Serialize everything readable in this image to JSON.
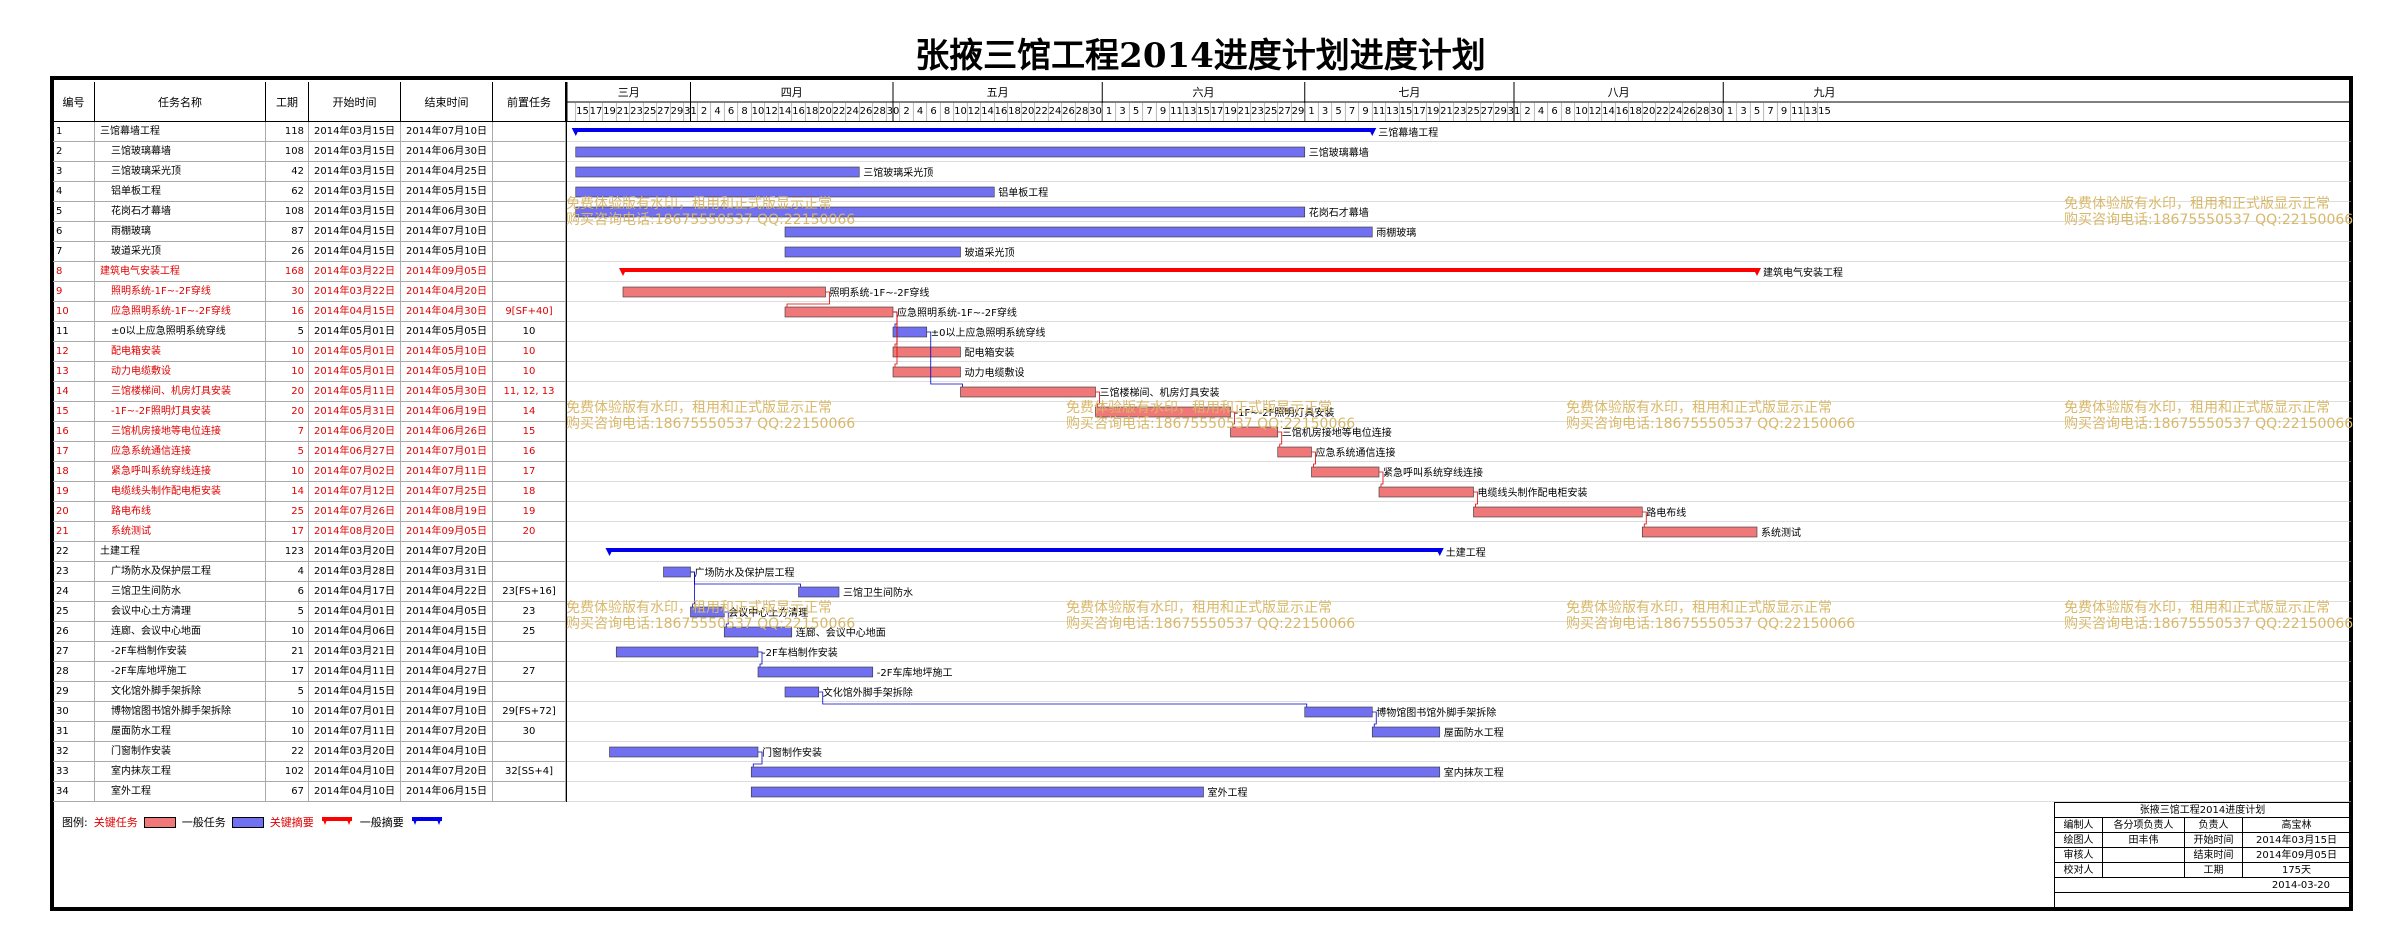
{
  "title": "张掖三馆工程2014进度计划进度计划",
  "table": {
    "headers": {
      "id": "编号",
      "name": "任务名称",
      "duration": "工期",
      "start": "开始时间",
      "end": "结束时间",
      "pred": "前置任务"
    },
    "rows": [
      {
        "id": "1",
        "name": "三馆幕墙工程",
        "dur": "118",
        "start": "2014年03月15日",
        "end": "2014年07月10日",
        "pred": "",
        "level": 1,
        "critical": false,
        "kind": "summary",
        "label": "三馆幕墙工程"
      },
      {
        "id": "2",
        "name": "三馆玻璃幕墙",
        "dur": "108",
        "start": "2014年03月15日",
        "end": "2014年06月30日",
        "pred": "",
        "level": 2,
        "critical": false,
        "kind": "task",
        "label": "三馆玻璃幕墙"
      },
      {
        "id": "3",
        "name": "三馆玻璃采光顶",
        "dur": "42",
        "start": "2014年03月15日",
        "end": "2014年04月25日",
        "pred": "",
        "level": 2,
        "critical": false,
        "kind": "task",
        "label": "三馆玻璃采光顶"
      },
      {
        "id": "4",
        "name": "铝单板工程",
        "dur": "62",
        "start": "2014年03月15日",
        "end": "2014年05月15日",
        "pred": "",
        "level": 2,
        "critical": false,
        "kind": "task",
        "label": "铝单板工程"
      },
      {
        "id": "5",
        "name": "花岗石才幕墙",
        "dur": "108",
        "start": "2014年03月15日",
        "end": "2014年06月30日",
        "pred": "",
        "level": 2,
        "critical": false,
        "kind": "task",
        "label": "花岗石才幕墙"
      },
      {
        "id": "6",
        "name": "雨棚玻璃",
        "dur": "87",
        "start": "2014年04月15日",
        "end": "2014年07月10日",
        "pred": "",
        "level": 2,
        "critical": false,
        "kind": "task",
        "label": "雨棚玻璃"
      },
      {
        "id": "7",
        "name": "玻道采光顶",
        "dur": "26",
        "start": "2014年04月15日",
        "end": "2014年05月10日",
        "pred": "",
        "level": 2,
        "critical": false,
        "kind": "task",
        "label": "玻道采光顶"
      },
      {
        "id": "8",
        "name": "建筑电气安装工程",
        "dur": "168",
        "start": "2014年03月22日",
        "end": "2014年09月05日",
        "pred": "",
        "level": 1,
        "critical": true,
        "kind": "summary",
        "label": "建筑电气安装工程"
      },
      {
        "id": "9",
        "name": "照明系统-1F~-2F穿线",
        "dur": "30",
        "start": "2014年03月22日",
        "end": "2014年04月20日",
        "pred": "",
        "level": 2,
        "critical": true,
        "kind": "task",
        "label": "照明系统-1F~-2F穿线"
      },
      {
        "id": "10",
        "name": "应急照明系统-1F~-2F穿线",
        "dur": "16",
        "start": "2014年04月15日",
        "end": "2014年04月30日",
        "pred": "9[SF+40]",
        "level": 2,
        "critical": true,
        "kind": "task",
        "label": "应急照明系统-1F~-2F穿线"
      },
      {
        "id": "11",
        "name": "±0以上应急照明系统穿线",
        "dur": "5",
        "start": "2014年05月01日",
        "end": "2014年05月05日",
        "pred": "10",
        "level": 2,
        "critical": false,
        "kind": "task",
        "label": "±0以上应急照明系统穿线"
      },
      {
        "id": "12",
        "name": "配电箱安装",
        "dur": "10",
        "start": "2014年05月01日",
        "end": "2014年05月10日",
        "pred": "10",
        "level": 2,
        "critical": true,
        "kind": "task",
        "label": "配电箱安装"
      },
      {
        "id": "13",
        "name": "动力电缆敷设",
        "dur": "10",
        "start": "2014年05月01日",
        "end": "2014年05月10日",
        "pred": "10",
        "level": 2,
        "critical": true,
        "kind": "task",
        "label": "动力电缆敷设"
      },
      {
        "id": "14",
        "name": "三馆楼梯间、机房灯具安装",
        "dur": "20",
        "start": "2014年05月11日",
        "end": "2014年05月30日",
        "pred": "11, 12, 13",
        "level": 2,
        "critical": true,
        "kind": "task",
        "label": "三馆楼梯间、机房灯具安装"
      },
      {
        "id": "15",
        "name": "-1F~-2F照明灯具安装",
        "dur": "20",
        "start": "2014年05月31日",
        "end": "2014年06月19日",
        "pred": "14",
        "level": 2,
        "critical": true,
        "kind": "task",
        "label": "-1F~-2F照明灯具安装"
      },
      {
        "id": "16",
        "name": "三馆机房接地等电位连接",
        "dur": "7",
        "start": "2014年06月20日",
        "end": "2014年06月26日",
        "pred": "15",
        "level": 2,
        "critical": true,
        "kind": "task",
        "label": "三馆机房接地等电位连接"
      },
      {
        "id": "17",
        "name": "应急系统通信连接",
        "dur": "5",
        "start": "2014年06月27日",
        "end": "2014年07月01日",
        "pred": "16",
        "level": 2,
        "critical": true,
        "kind": "task",
        "label": "应急系统通信连接"
      },
      {
        "id": "18",
        "name": "紧急呼叫系统穿线连接",
        "dur": "10",
        "start": "2014年07月02日",
        "end": "2014年07月11日",
        "pred": "17",
        "level": 2,
        "critical": true,
        "kind": "task",
        "label": "紧急呼叫系统穿线连接"
      },
      {
        "id": "19",
        "name": "电缆线头制作配电柜安装",
        "dur": "14",
        "start": "2014年07月12日",
        "end": "2014年07月25日",
        "pred": "18",
        "level": 2,
        "critical": true,
        "kind": "task",
        "label": "电缆线头制作配电柜安装"
      },
      {
        "id": "20",
        "name": "路电布线",
        "dur": "25",
        "start": "2014年07月26日",
        "end": "2014年08月19日",
        "pred": "19",
        "level": 2,
        "critical": true,
        "kind": "task",
        "label": "路电布线"
      },
      {
        "id": "21",
        "name": "系统测试",
        "dur": "17",
        "start": "2014年08月20日",
        "end": "2014年09月05日",
        "pred": "20",
        "level": 2,
        "critical": true,
        "kind": "task",
        "label": "系统测试"
      },
      {
        "id": "22",
        "name": "土建工程",
        "dur": "123",
        "start": "2014年03月20日",
        "end": "2014年07月20日",
        "pred": "",
        "level": 1,
        "critical": false,
        "kind": "summary",
        "label": "土建工程"
      },
      {
        "id": "23",
        "name": "广场防水及保护层工程",
        "dur": "4",
        "start": "2014年03月28日",
        "end": "2014年03月31日",
        "pred": "",
        "level": 2,
        "critical": false,
        "kind": "task",
        "label": "广场防水及保护层工程"
      },
      {
        "id": "24",
        "name": "三馆卫生间防水",
        "dur": "6",
        "start": "2014年04月17日",
        "end": "2014年04月22日",
        "pred": "23[FS+16]",
        "level": 2,
        "critical": false,
        "kind": "task",
        "label": "三馆卫生间防水"
      },
      {
        "id": "25",
        "name": "会议中心土方清理",
        "dur": "5",
        "start": "2014年04月01日",
        "end": "2014年04月05日",
        "pred": "23",
        "level": 2,
        "critical": false,
        "kind": "task",
        "label": "会议中心土方清理"
      },
      {
        "id": "26",
        "name": "连廊、会议中心地面",
        "dur": "10",
        "start": "2014年04月06日",
        "end": "2014年04月15日",
        "pred": "25",
        "level": 2,
        "critical": false,
        "kind": "task",
        "label": "连廊、会议中心地面"
      },
      {
        "id": "27",
        "name": "-2F车档制作安装",
        "dur": "21",
        "start": "2014年03月21日",
        "end": "2014年04月10日",
        "pred": "",
        "level": 2,
        "critical": false,
        "kind": "task",
        "label": "-2F车档制作安装"
      },
      {
        "id": "28",
        "name": "-2F车库地坪施工",
        "dur": "17",
        "start": "2014年04月11日",
        "end": "2014年04月27日",
        "pred": "27",
        "level": 2,
        "critical": false,
        "kind": "task",
        "label": "-2F车库地坪施工"
      },
      {
        "id": "29",
        "name": "文化馆外脚手架拆除",
        "dur": "5",
        "start": "2014年04月15日",
        "end": "2014年04月19日",
        "pred": "",
        "level": 2,
        "critical": false,
        "kind": "task",
        "label": "文化馆外脚手架拆除"
      },
      {
        "id": "30",
        "name": "博物馆图书馆外脚手架拆除",
        "dur": "10",
        "start": "2014年07月01日",
        "end": "2014年07月10日",
        "pred": "29[FS+72]",
        "level": 2,
        "critical": false,
        "kind": "task",
        "label": "博物馆图书馆外脚手架拆除"
      },
      {
        "id": "31",
        "name": "屋面防水工程",
        "dur": "10",
        "start": "2014年07月11日",
        "end": "2014年07月20日",
        "pred": "30",
        "level": 2,
        "critical": false,
        "kind": "task",
        "label": "屋面防水工程"
      },
      {
        "id": "32",
        "name": "门窗制作安装",
        "dur": "22",
        "start": "2014年03月20日",
        "end": "2014年04月10日",
        "pred": "",
        "level": 2,
        "critical": false,
        "kind": "task",
        "label": "门窗制作安装"
      },
      {
        "id": "33",
        "name": "室内抹灰工程",
        "dur": "102",
        "start": "2014年04月10日",
        "end": "2014年07月20日",
        "pred": "32[SS+4]",
        "level": 2,
        "critical": false,
        "kind": "task",
        "label": "室内抹灰工程"
      },
      {
        "id": "34",
        "name": "室外工程",
        "dur": "67",
        "start": "2014年04月10日",
        "end": "2014年06月15日",
        "pred": "",
        "level": 2,
        "critical": false,
        "kind": "task",
        "label": "室外工程"
      }
    ]
  },
  "timescale": {
    "months": [
      {
        "name": "三月",
        "days": [
          "15",
          "17",
          "19",
          "21",
          "23",
          "25",
          "27",
          "29",
          "31"
        ]
      },
      {
        "name": "四月",
        "days": [
          "2",
          "4",
          "6",
          "8",
          "10",
          "12",
          "14",
          "16",
          "18",
          "20",
          "22",
          "24",
          "26",
          "28",
          "30"
        ]
      },
      {
        "name": "五月",
        "days": [
          "2",
          "4",
          "6",
          "8",
          "10",
          "12",
          "14",
          "16",
          "18",
          "20",
          "22",
          "24",
          "26",
          "28",
          "30"
        ]
      },
      {
        "name": "六月",
        "days": [
          "1",
          "3",
          "5",
          "7",
          "9",
          "11",
          "13",
          "15",
          "17",
          "19",
          "21",
          "23",
          "25",
          "27",
          "29"
        ]
      },
      {
        "name": "七月",
        "days": [
          "1",
          "3",
          "5",
          "7",
          "9",
          "11",
          "13",
          "15",
          "17",
          "19",
          "21",
          "23",
          "25",
          "27",
          "29",
          "31"
        ]
      },
      {
        "name": "八月",
        "days": [
          "2",
          "4",
          "6",
          "8",
          "10",
          "12",
          "14",
          "16",
          "18",
          "20",
          "22",
          "24",
          "26",
          "28",
          "30"
        ]
      },
      {
        "name": "九月",
        "days": [
          "1",
          "3",
          "5",
          "7",
          "9",
          "11",
          "13",
          "15"
        ]
      }
    ]
  },
  "legend": {
    "label": "图例:",
    "critical_task": "关键任务",
    "normal_task": "一般任务",
    "critical_summary": "关键摘要",
    "normal_summary": "一般摘要"
  },
  "signoff": {
    "title": "张掖三馆工程2014进度计划",
    "rows": [
      [
        "编制人",
        "各分项负责人",
        "负责人",
        "高宝林"
      ],
      [
        "绘图人",
        "田丰伟",
        "开始时间",
        "2014年03月15日"
      ],
      [
        "审核人",
        "",
        "结束时间",
        "2014年09月05日"
      ],
      [
        "校对人",
        "",
        "工期",
        "175天"
      ]
    ],
    "date": "2014-03-20"
  },
  "watermark": {
    "line1": "免费体验版有水印，租用和正式版显示正常",
    "line2": "购买咨询电话:18675550537 QQ:22150066"
  },
  "colors": {
    "critical": "#f07878",
    "normal": "#7070f0",
    "critical_summary": "#ff0000",
    "normal_summary": "#0000ee",
    "watermark": "#d8b86a"
  }
}
